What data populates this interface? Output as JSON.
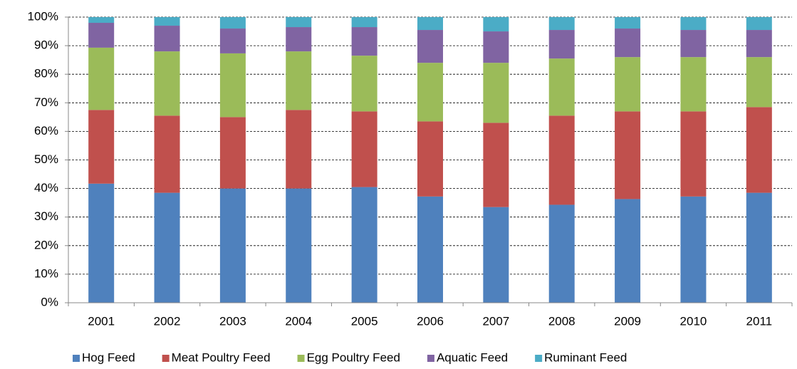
{
  "chart_data": {
    "type": "stacked_bar",
    "categories": [
      "2001",
      "2002",
      "2003",
      "2004",
      "2005",
      "2006",
      "2007",
      "2008",
      "2009",
      "2010",
      "2011"
    ],
    "series": [
      {
        "name": "Hog Feed",
        "color": "#4f81bd",
        "values": [
          41.7,
          38.5,
          40,
          40,
          40.5,
          37.2,
          33.5,
          34.3,
          36.3,
          37.2,
          38.5
        ]
      },
      {
        "name": "Meat Poultry Feed",
        "color": "#c0504d",
        "values": [
          25.8,
          27,
          25,
          27.5,
          26.5,
          26.3,
          29.5,
          31.2,
          30.7,
          29.8,
          30
        ]
      },
      {
        "name": "Egg Poultry Feed",
        "color": "#9bbb59",
        "values": [
          21.8,
          22.5,
          22.3,
          20.5,
          19.5,
          20.5,
          21,
          20,
          19,
          19,
          17.5
        ]
      },
      {
        "name": "Aquatic Feed",
        "color": "#8064a2",
        "values": [
          8.7,
          9,
          8.7,
          8.5,
          10,
          11.5,
          11,
          10,
          10,
          9.5,
          9.5
        ]
      },
      {
        "name": "Ruminant Feed",
        "color": "#4bacc6",
        "values": [
          2,
          3,
          4,
          3.5,
          3.5,
          4.5,
          5,
          4.5,
          4,
          4.5,
          4.5
        ]
      }
    ],
    "ylim": [
      0,
      100
    ],
    "yticks": [
      {
        "value": 0,
        "label": "0%"
      },
      {
        "value": 10,
        "label": "10%"
      },
      {
        "value": 20,
        "label": "20%"
      },
      {
        "value": 30,
        "label": "30%"
      },
      {
        "value": 40,
        "label": "40%"
      },
      {
        "value": 50,
        "label": "50%"
      },
      {
        "value": 60,
        "label": "60%"
      },
      {
        "value": 70,
        "label": "70%"
      },
      {
        "value": 80,
        "label": "80%"
      },
      {
        "value": 90,
        "label": "90%"
      },
      {
        "value": 100,
        "label": "100%"
      }
    ],
    "grid": true,
    "legend": "bottom"
  }
}
